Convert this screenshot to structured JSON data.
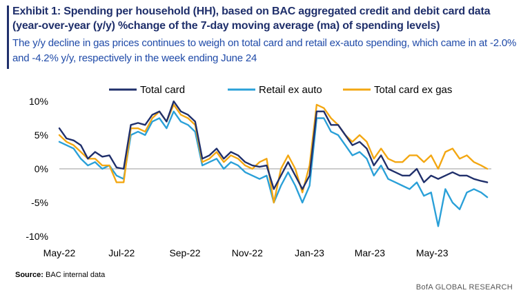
{
  "header": {
    "title": "Exhibit 1: Spending per household (HH), based on BAC aggregated credit and debit card data (year-over-year (y/y)  %change of the 7-day moving average (ma)  of spending levels)",
    "subtitle": "The y/y decline in gas prices continues to weigh on total card and retail ex-auto spending, which came in at -2.0% and -4.2% y/y, respectively in the week ending June 24"
  },
  "footer": {
    "source_label": "Source:",
    "source_text": "BAC internal data",
    "brand": "BofA GLOBAL RESEARCH"
  },
  "colors": {
    "total_card": "#1f2f6b",
    "retail_ex_auto": "#2aa0d8",
    "total_card_ex_gas": "#f3a712",
    "title": "#1f2f6b",
    "subtitle": "#1f4aa8"
  },
  "chart_data": {
    "type": "line",
    "title": "",
    "xlabel": "",
    "ylabel": "",
    "ylim": [
      -10,
      10
    ],
    "yticks": [
      "10%",
      "5%",
      "0%",
      "-5%",
      "-10%"
    ],
    "xticks": [
      "May-22",
      "Jul-22",
      "Sep-22",
      "Nov-22",
      "Jan-23",
      "Mar-23",
      "May-23"
    ],
    "legend_position": "top",
    "grid": false,
    "x": [
      "2022-05-01",
      "2022-05-08",
      "2022-05-15",
      "2022-05-22",
      "2022-05-29",
      "2022-06-05",
      "2022-06-12",
      "2022-06-19",
      "2022-06-26",
      "2022-07-03",
      "2022-07-10",
      "2022-07-17",
      "2022-07-24",
      "2022-07-31",
      "2022-08-07",
      "2022-08-14",
      "2022-08-21",
      "2022-08-28",
      "2022-09-04",
      "2022-09-11",
      "2022-09-18",
      "2022-09-25",
      "2022-10-02",
      "2022-10-09",
      "2022-10-16",
      "2022-10-23",
      "2022-10-30",
      "2022-11-06",
      "2022-11-13",
      "2022-11-20",
      "2022-11-27",
      "2022-12-04",
      "2022-12-11",
      "2022-12-18",
      "2022-12-25",
      "2023-01-01",
      "2023-01-08",
      "2023-01-15",
      "2023-01-22",
      "2023-01-29",
      "2023-02-05",
      "2023-02-12",
      "2023-02-19",
      "2023-02-26",
      "2023-03-05",
      "2023-03-12",
      "2023-03-19",
      "2023-03-26",
      "2023-04-02",
      "2023-04-09",
      "2023-04-16",
      "2023-04-23",
      "2023-04-30",
      "2023-05-07",
      "2023-05-14",
      "2023-05-21",
      "2023-05-28",
      "2023-06-04",
      "2023-06-11",
      "2023-06-18",
      "2023-06-24"
    ],
    "series": [
      {
        "name": "Total card",
        "values": [
          6.0,
          4.5,
          4.2,
          3.5,
          1.5,
          2.5,
          1.8,
          2.0,
          0.2,
          0.0,
          6.5,
          6.8,
          6.5,
          8.0,
          8.5,
          7.0,
          10.0,
          8.5,
          8.0,
          7.0,
          1.5,
          2.0,
          3.0,
          1.5,
          2.5,
          2.0,
          1.0,
          0.5,
          0.3,
          0.5,
          -3.0,
          -1.0,
          1.0,
          -1.0,
          -3.0,
          -1.0,
          8.5,
          8.5,
          6.5,
          6.5,
          5.0,
          3.5,
          4.0,
          3.0,
          0.5,
          2.0,
          0.0,
          -0.5,
          -1.0,
          -1.0,
          0.0,
          -2.0,
          -1.0,
          -1.5,
          -1.0,
          -0.5,
          -1.0,
          -1.0,
          -1.5,
          -1.8,
          -2.0
        ]
      },
      {
        "name": "Retail ex auto",
        "values": [
          4.0,
          3.5,
          3.0,
          1.5,
          0.5,
          1.0,
          0.0,
          0.5,
          -1.0,
          -1.5,
          5.0,
          5.5,
          5.0,
          7.0,
          7.5,
          6.0,
          8.5,
          7.0,
          6.5,
          5.5,
          0.5,
          1.0,
          1.5,
          0.0,
          1.0,
          0.5,
          -0.5,
          -1.0,
          -1.5,
          -1.0,
          -5.0,
          -2.5,
          -0.5,
          -2.5,
          -5.0,
          -2.5,
          7.5,
          7.5,
          5.5,
          5.0,
          3.5,
          2.0,
          2.5,
          1.5,
          -1.0,
          0.5,
          -1.5,
          -2.0,
          -2.5,
          -3.0,
          -2.0,
          -4.0,
          -3.5,
          -8.5,
          -3.0,
          -5.0,
          -6.0,
          -3.5,
          -3.0,
          -3.5,
          -4.2
        ]
      },
      {
        "name": "Total card ex gas",
        "values": [
          5.0,
          4.0,
          3.5,
          2.5,
          1.5,
          1.5,
          0.5,
          0.5,
          -2.0,
          -2.0,
          6.0,
          6.0,
          5.5,
          7.5,
          8.5,
          7.0,
          9.5,
          8.0,
          7.5,
          6.5,
          1.0,
          1.5,
          2.5,
          1.0,
          2.0,
          1.5,
          0.5,
          0.0,
          1.0,
          1.5,
          -5.0,
          0.0,
          2.0,
          0.0,
          -3.5,
          0.5,
          9.5,
          9.0,
          7.5,
          6.5,
          5.0,
          4.0,
          5.0,
          4.0,
          1.5,
          3.0,
          1.5,
          1.0,
          1.0,
          2.0,
          2.0,
          1.0,
          2.0,
          0.0,
          2.5,
          3.0,
          1.5,
          2.0,
          1.0,
          0.5,
          0.0
        ]
      }
    ]
  }
}
